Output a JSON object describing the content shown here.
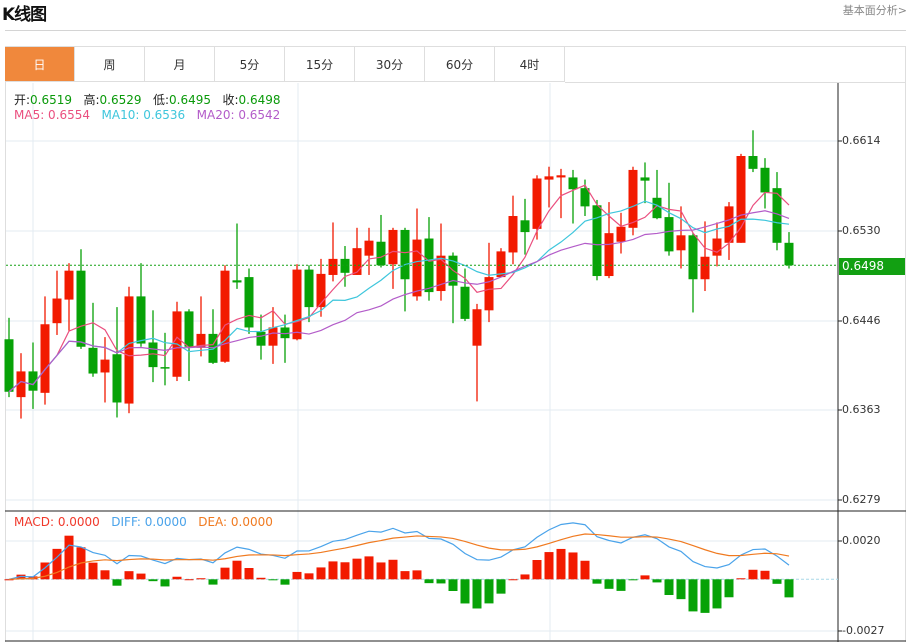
{
  "header": {
    "title": "K线图",
    "link": "基本面分析>"
  },
  "tabs": [
    {
      "label": "日",
      "active": true
    },
    {
      "label": "周"
    },
    {
      "label": "月"
    },
    {
      "label": "5分"
    },
    {
      "label": "15分"
    },
    {
      "label": "30分"
    },
    {
      "label": "60分"
    },
    {
      "label": "4时"
    }
  ],
  "ohlc_info": {
    "open_label": "开:",
    "open": "0.6519",
    "high_label": "高:",
    "high": "0.6529",
    "low_label": "低:",
    "low": "0.6495",
    "close_label": "收:",
    "close": "0.6498"
  },
  "ma_info": {
    "ma5": "MA5: 0.6554",
    "ma10": "MA10: 0.6536",
    "ma20": "MA20: 0.6542"
  },
  "macd_info": {
    "macd": "MACD: 0.0000",
    "diff": "DIFF: 0.0000",
    "dea": "DEA: 0.0000"
  },
  "current_price": "0.6498",
  "colors": {
    "up": "#f21a00",
    "down": "#07a207",
    "ma5": "#ea4f7f",
    "ma10": "#3ec6dc",
    "ma20": "#b35cc9",
    "diff": "#4aa3ea",
    "dea": "#f07a20",
    "accent": "#f0883c"
  },
  "chart_data": {
    "type": "candlestick",
    "price_axis": {
      "ticks": [
        "0.6614",
        "0.6530",
        "0.6446",
        "0.6363",
        "0.6279"
      ],
      "range": [
        0.6279,
        0.6614
      ]
    },
    "macd_axis": {
      "ticks": [
        "0.0020",
        "-0.0027"
      ],
      "range": [
        -0.0027,
        0.002
      ]
    },
    "candles": [
      [
        0.6429,
        0.6449,
        0.6375,
        0.638
      ],
      [
        0.6375,
        0.6416,
        0.6355,
        0.6399
      ],
      [
        0.6399,
        0.6426,
        0.6364,
        0.6381
      ],
      [
        0.6379,
        0.6469,
        0.6368,
        0.6443
      ],
      [
        0.6444,
        0.6493,
        0.6433,
        0.6467
      ],
      [
        0.6466,
        0.65,
        0.6437,
        0.6493
      ],
      [
        0.6493,
        0.6513,
        0.642,
        0.6422
      ],
      [
        0.6421,
        0.6463,
        0.6394,
        0.6397
      ],
      [
        0.6398,
        0.6431,
        0.637,
        0.641
      ],
      [
        0.6415,
        0.6459,
        0.6356,
        0.637
      ],
      [
        0.6369,
        0.6478,
        0.636,
        0.6469
      ],
      [
        0.6469,
        0.65,
        0.6422,
        0.6425
      ],
      [
        0.6426,
        0.6456,
        0.6389,
        0.6403
      ],
      [
        0.6403,
        0.6435,
        0.6386,
        0.6402
      ],
      [
        0.6394,
        0.6464,
        0.639,
        0.6455
      ],
      [
        0.6455,
        0.6457,
        0.639,
        0.6422
      ],
      [
        0.6421,
        0.6469,
        0.6413,
        0.6434
      ],
      [
        0.6434,
        0.6457,
        0.6406,
        0.6407
      ],
      [
        0.6408,
        0.6498,
        0.6407,
        0.6493
      ],
      [
        0.6484,
        0.6537,
        0.6476,
        0.6482
      ],
      [
        0.6487,
        0.6495,
        0.6434,
        0.644
      ],
      [
        0.6436,
        0.6452,
        0.641,
        0.6423
      ],
      [
        0.6423,
        0.6459,
        0.6406,
        0.644
      ],
      [
        0.644,
        0.6452,
        0.6407,
        0.643
      ],
      [
        0.6429,
        0.6499,
        0.6428,
        0.6494
      ],
      [
        0.6494,
        0.6498,
        0.6445,
        0.6459
      ],
      [
        0.6459,
        0.6504,
        0.645,
        0.649
      ],
      [
        0.6489,
        0.6538,
        0.6483,
        0.6504
      ],
      [
        0.6504,
        0.6516,
        0.6478,
        0.6491
      ],
      [
        0.6489,
        0.6533,
        0.6489,
        0.6514
      ],
      [
        0.6507,
        0.6533,
        0.6489,
        0.6521
      ],
      [
        0.652,
        0.6545,
        0.6496,
        0.6498
      ],
      [
        0.6499,
        0.6533,
        0.6476,
        0.6531
      ],
      [
        0.6531,
        0.6533,
        0.6455,
        0.6485
      ],
      [
        0.6469,
        0.6551,
        0.6465,
        0.6522
      ],
      [
        0.6523,
        0.6543,
        0.6465,
        0.6473
      ],
      [
        0.6474,
        0.6537,
        0.6465,
        0.6507
      ],
      [
        0.6507,
        0.651,
        0.6444,
        0.6479
      ],
      [
        0.6478,
        0.6495,
        0.6446,
        0.6448
      ],
      [
        0.6423,
        0.6462,
        0.6371,
        0.6457
      ],
      [
        0.6456,
        0.6519,
        0.6445,
        0.6487
      ],
      [
        0.6487,
        0.6514,
        0.6487,
        0.6511
      ],
      [
        0.651,
        0.6563,
        0.6499,
        0.6544
      ],
      [
        0.654,
        0.656,
        0.6508,
        0.6529
      ],
      [
        0.6532,
        0.6582,
        0.6522,
        0.6579
      ],
      [
        0.6578,
        0.659,
        0.6552,
        0.6581
      ],
      [
        0.658,
        0.6588,
        0.6542,
        0.6582
      ],
      [
        0.658,
        0.6587,
        0.6537,
        0.6569
      ],
      [
        0.657,
        0.6578,
        0.6544,
        0.6553
      ],
      [
        0.6554,
        0.6559,
        0.6484,
        0.6488
      ],
      [
        0.6488,
        0.6557,
        0.6486,
        0.6528
      ],
      [
        0.652,
        0.6547,
        0.6509,
        0.6534
      ],
      [
        0.6533,
        0.659,
        0.6526,
        0.6587
      ],
      [
        0.658,
        0.6594,
        0.6556,
        0.6577
      ],
      [
        0.6561,
        0.6587,
        0.6541,
        0.6542
      ],
      [
        0.6543,
        0.6575,
        0.6507,
        0.6511
      ],
      [
        0.6512,
        0.6553,
        0.6495,
        0.6526
      ],
      [
        0.6526,
        0.6528,
        0.6454,
        0.6485
      ],
      [
        0.6485,
        0.6539,
        0.6474,
        0.6506
      ],
      [
        0.6507,
        0.6538,
        0.6497,
        0.6523
      ],
      [
        0.6519,
        0.6557,
        0.6503,
        0.6553
      ],
      [
        0.6519,
        0.6602,
        0.6519,
        0.66
      ],
      [
        0.66,
        0.6624,
        0.6585,
        0.6588
      ],
      [
        0.6589,
        0.6598,
        0.6551,
        0.6566
      ],
      [
        0.657,
        0.6585,
        0.6512,
        0.6519
      ],
      [
        0.6519,
        0.6529,
        0.6495,
        0.6498
      ]
    ]
  }
}
